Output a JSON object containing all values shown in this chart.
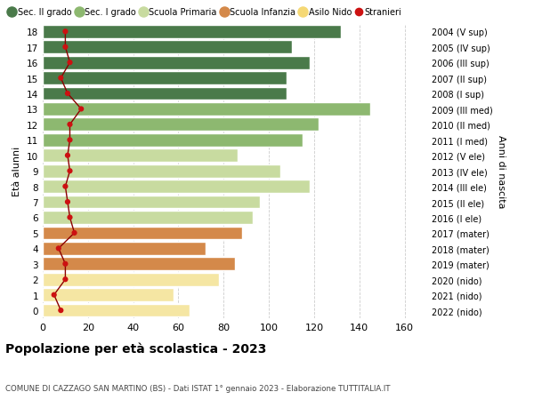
{
  "ages": [
    0,
    1,
    2,
    3,
    4,
    5,
    6,
    7,
    8,
    9,
    10,
    11,
    12,
    13,
    14,
    15,
    16,
    17,
    18
  ],
  "bar_values": [
    65,
    58,
    78,
    85,
    72,
    88,
    93,
    96,
    118,
    105,
    86,
    115,
    122,
    145,
    108,
    108,
    118,
    110,
    132
  ],
  "bar_colors": [
    "#f5e6a3",
    "#f5e6a3",
    "#f5e6a3",
    "#d4894a",
    "#d4894a",
    "#d4894a",
    "#c8dba0",
    "#c8dba0",
    "#c8dba0",
    "#c8dba0",
    "#c8dba0",
    "#8db870",
    "#8db870",
    "#8db870",
    "#4a7a4a",
    "#4a7a4a",
    "#4a7a4a",
    "#4a7a4a",
    "#4a7a4a"
  ],
  "stranieri_values": [
    8,
    5,
    10,
    10,
    7,
    14,
    12,
    11,
    10,
    12,
    11,
    12,
    12,
    17,
    11,
    8,
    12,
    10,
    10
  ],
  "right_labels": [
    "2022 (nido)",
    "2021 (nido)",
    "2020 (nido)",
    "2019 (mater)",
    "2018 (mater)",
    "2017 (mater)",
    "2016 (I ele)",
    "2015 (II ele)",
    "2014 (III ele)",
    "2013 (IV ele)",
    "2012 (V ele)",
    "2011 (I med)",
    "2010 (II med)",
    "2009 (III med)",
    "2008 (I sup)",
    "2007 (II sup)",
    "2006 (III sup)",
    "2005 (IV sup)",
    "2004 (V sup)"
  ],
  "legend_labels": [
    "Sec. II grado",
    "Sec. I grado",
    "Scuola Primaria",
    "Scuola Infanzia",
    "Asilo Nido",
    "Stranieri"
  ],
  "legend_colors": [
    "#4a7a4a",
    "#8db870",
    "#c8dba0",
    "#d4894a",
    "#f5d875",
    "#cc1111"
  ],
  "ylabel_left": "Età alunni",
  "ylabel_right": "Anni di nascita",
  "title": "Popolazione per età scolastica - 2023",
  "subtitle": "COMUNE DI CAZZAGO SAN MARTINO (BS) - Dati ISTAT 1° gennaio 2023 - Elaborazione TUTTITALIA.IT",
  "xlim": [
    0,
    170
  ],
  "xticks": [
    0,
    20,
    40,
    60,
    80,
    100,
    120,
    140,
    160
  ],
  "bg_color": "#ffffff",
  "grid_color": "#cccccc"
}
